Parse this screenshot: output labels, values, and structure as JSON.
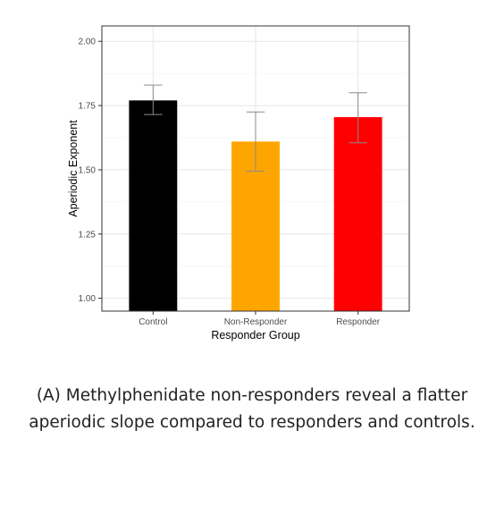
{
  "chart_data": {
    "type": "bar",
    "title": "",
    "xlabel": "Responder Group",
    "ylabel": "Aperiodic Exponent",
    "categories": [
      "Control",
      "Non-Responder",
      "Responder"
    ],
    "values": [
      1.77,
      1.61,
      1.705
    ],
    "error_low": [
      1.715,
      1.495,
      1.605
    ],
    "error_high": [
      1.83,
      1.725,
      1.8
    ],
    "colors": [
      "#000000",
      "#ffa500",
      "#ff0000"
    ],
    "ylim": [
      0.95,
      2.06
    ],
    "yticks": [
      1.0,
      1.25,
      1.5,
      1.75,
      2.0
    ],
    "ytick_labels": [
      "1.00",
      "1.25",
      "1.50",
      "1.75",
      "2.00"
    ],
    "grid": true,
    "legend": "none"
  },
  "caption": "(A) Methylphenidate non-responders reveal a flatter aperiodic slope compared to responders and controls."
}
